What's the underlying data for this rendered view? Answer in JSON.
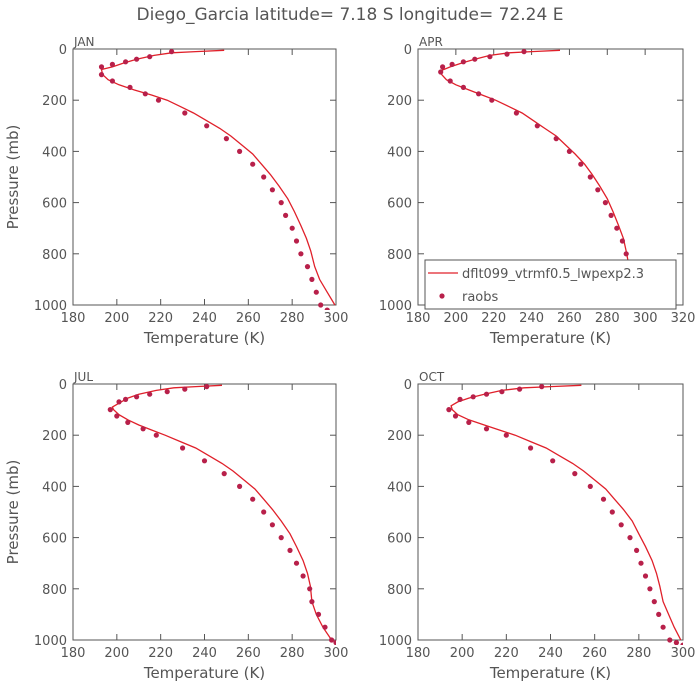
{
  "figure": {
    "title": "Diego_Garcia  latitude= 7.18 S longitude= 72.24 E"
  },
  "legend": {
    "model_label": "dflt099_vtrmf0.5_lwpexp2.3",
    "obs_label": "raobs",
    "model_color": "#e0202a",
    "obs_color": "#b8204a",
    "placement": "lower-right of APR panel"
  },
  "chart_data": [
    {
      "type": "line",
      "panel": "JAN",
      "xlabel": "Temperature (K)",
      "ylabel": "Pressure (mb)",
      "xlim": [
        180,
        300
      ],
      "ylim": [
        1000,
        0
      ],
      "xticks": [
        180,
        200,
        220,
        240,
        260,
        280,
        300
      ],
      "yticks": [
        0,
        200,
        400,
        600,
        800,
        1000
      ],
      "series": [
        {
          "name": "dflt099_vtrmf0.5_lwpexp2.3",
          "style": "line",
          "x": [
            249,
            236,
            225,
            217,
            209,
            203,
            198,
            193,
            193.5,
            196,
            201,
            208,
            216,
            223,
            229,
            235,
            241,
            247,
            252,
            257,
            262,
            266,
            270,
            274,
            278,
            281,
            284,
            286.5,
            288.5,
            290.3,
            292.5,
            296,
            299.5
          ],
          "y": [
            5,
            10,
            15,
            25,
            40,
            55,
            70,
            80,
            100,
            120,
            140,
            160,
            180,
            200,
            225,
            250,
            280,
            310,
            340,
            375,
            410,
            450,
            490,
            535,
            585,
            635,
            690,
            740,
            790,
            850,
            900,
            950,
            1000
          ]
        },
        {
          "name": "raobs",
          "style": "points",
          "x": [
            225,
            215,
            209,
            204,
            198,
            193,
            193,
            198,
            206,
            213,
            219,
            231,
            241,
            250,
            256,
            262,
            267,
            271,
            275,
            277,
            280,
            282,
            284,
            287,
            289,
            291,
            293,
            296,
            300
          ],
          "y": [
            10,
            30,
            40,
            50,
            60,
            70,
            100,
            125,
            150,
            175,
            200,
            250,
            300,
            350,
            400,
            450,
            500,
            550,
            600,
            650,
            700,
            750,
            800,
            850,
            900,
            950,
            1000,
            1020,
            1030
          ]
        }
      ]
    },
    {
      "type": "line",
      "panel": "APR",
      "xlabel": "Temperature (K)",
      "ylabel": "",
      "xlim": [
        180,
        320
      ],
      "ylim": [
        1000,
        0
      ],
      "xticks": [
        180,
        200,
        220,
        240,
        260,
        280,
        300,
        320
      ],
      "yticks": [
        0,
        200,
        400,
        600,
        800,
        1000
      ],
      "series": [
        {
          "name": "dflt099_vtrmf0.5_lwpexp2.3",
          "style": "line",
          "x": [
            255,
            240,
            228,
            218,
            210,
            203,
            197,
            192,
            192.5,
            195,
            200,
            207,
            214,
            221,
            228,
            235,
            241,
            247,
            253,
            258,
            263,
            268,
            272,
            276,
            280,
            283,
            286,
            288.5,
            290,
            291.5,
            294,
            297,
            300
          ],
          "y": [
            5,
            10,
            15,
            25,
            40,
            55,
            70,
            85,
            100,
            120,
            140,
            160,
            180,
            200,
            225,
            250,
            280,
            310,
            340,
            375,
            410,
            450,
            490,
            535,
            585,
            635,
            690,
            740,
            790,
            850,
            900,
            950,
            1000
          ]
        },
        {
          "name": "raobs",
          "style": "points",
          "x": [
            236,
            227,
            218,
            210,
            204,
            198,
            193,
            192,
            197,
            204,
            212,
            219,
            232,
            243,
            253,
            260,
            266,
            271,
            275,
            279,
            282,
            285,
            288,
            290,
            293,
            295,
            298,
            300
          ],
          "y": [
            10,
            20,
            30,
            40,
            50,
            60,
            70,
            90,
            125,
            150,
            175,
            200,
            250,
            300,
            350,
            400,
            450,
            500,
            550,
            600,
            650,
            700,
            750,
            800,
            850,
            900,
            950,
            1000
          ]
        }
      ]
    },
    {
      "type": "line",
      "panel": "JUL",
      "xlabel": "Temperature (K)",
      "ylabel": "Pressure (mb)",
      "xlim": [
        180,
        300
      ],
      "ylim": [
        1000,
        0
      ],
      "xticks": [
        180,
        200,
        220,
        240,
        260,
        280,
        300
      ],
      "yticks": [
        0,
        200,
        400,
        600,
        800,
        1000
      ],
      "series": [
        {
          "name": "dflt099_vtrmf0.5_lwpexp2.3",
          "style": "line",
          "x": [
            248,
            236,
            226,
            218,
            210,
            205,
            201,
            198,
            198.5,
            201,
            205,
            210,
            216,
            222,
            229,
            236,
            242,
            248,
            253,
            258,
            263,
            267,
            271,
            275,
            279,
            282,
            285,
            287,
            288.3,
            289,
            291,
            294,
            298
          ],
          "y": [
            5,
            10,
            15,
            25,
            40,
            55,
            75,
            90,
            100,
            120,
            140,
            160,
            180,
            200,
            225,
            250,
            280,
            310,
            340,
            375,
            410,
            450,
            490,
            535,
            585,
            635,
            690,
            740,
            790,
            850,
            900,
            950,
            1000
          ]
        },
        {
          "name": "raobs",
          "style": "points",
          "x": [
            241,
            231,
            223,
            215,
            209,
            204,
            201,
            197,
            200,
            205,
            212,
            218,
            230,
            240,
            249,
            256,
            262,
            267,
            271,
            275,
            279,
            282,
            285,
            288,
            289,
            292,
            295,
            298,
            300
          ],
          "y": [
            10,
            20,
            30,
            40,
            50,
            60,
            70,
            100,
            125,
            150,
            175,
            200,
            250,
            300,
            350,
            400,
            450,
            500,
            550,
            600,
            650,
            700,
            750,
            800,
            850,
            900,
            950,
            1000,
            1010
          ]
        }
      ]
    },
    {
      "type": "line",
      "panel": "OCT",
      "xlabel": "Temperature (K)",
      "ylabel": "",
      "xlim": [
        180,
        300
      ],
      "ylim": [
        1000,
        0
      ],
      "xticks": [
        180,
        200,
        220,
        240,
        260,
        280,
        300
      ],
      "yticks": [
        0,
        200,
        400,
        600,
        800,
        1000
      ],
      "series": [
        {
          "name": "dflt099_vtrmf0.5_lwpexp2.3",
          "style": "line",
          "x": [
            254,
            240,
            228,
            218,
            210,
            203,
            198,
            195,
            195.5,
            198,
            203,
            210,
            217,
            224,
            231,
            238,
            244,
            250,
            255,
            260,
            265,
            269,
            273,
            277,
            280,
            283,
            286,
            288,
            289.5,
            291,
            293.5,
            296,
            299
          ],
          "y": [
            5,
            10,
            15,
            25,
            40,
            55,
            70,
            85,
            100,
            120,
            140,
            160,
            180,
            200,
            225,
            250,
            280,
            310,
            340,
            375,
            410,
            450,
            490,
            535,
            585,
            635,
            690,
            740,
            790,
            850,
            900,
            950,
            1000
          ]
        },
        {
          "name": "raobs",
          "style": "points",
          "x": [
            236,
            226,
            218,
            211,
            205,
            199,
            194,
            197,
            203,
            211,
            220,
            231,
            241,
            251,
            258,
            264,
            268,
            272,
            276,
            279,
            281,
            283,
            285,
            287,
            289,
            291,
            294,
            297,
            300
          ],
          "y": [
            10,
            20,
            30,
            40,
            50,
            60,
            100,
            125,
            150,
            175,
            200,
            250,
            300,
            350,
            400,
            450,
            500,
            550,
            600,
            650,
            700,
            750,
            800,
            850,
            900,
            950,
            1000,
            1010,
            1020
          ]
        }
      ]
    }
  ]
}
